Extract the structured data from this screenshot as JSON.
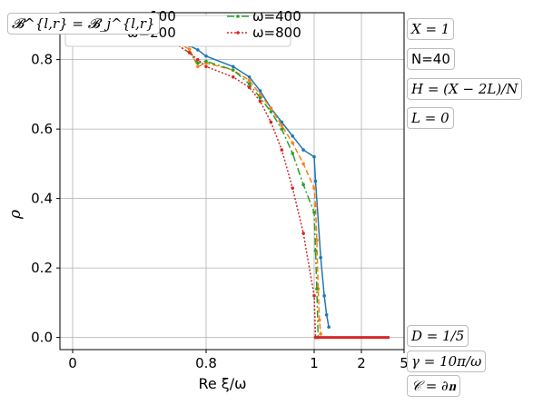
{
  "chart_data": {
    "type": "line",
    "title": "",
    "xlabel": "Re ξ/ω",
    "ylabel": "ρ",
    "x_ticks": [
      {
        "v": 0,
        "label": "0"
      },
      {
        "v": 0.8,
        "label": "0.8"
      },
      {
        "v": 1,
        "label": "1"
      },
      {
        "v": 2,
        "label": "2"
      },
      {
        "v": 5,
        "label": "5"
      }
    ],
    "y_ticks": [
      0.0,
      0.2,
      0.4,
      0.6,
      0.8
    ],
    "y_tick_labels": [
      "0.0",
      "0.2",
      "0.4",
      "0.6",
      "0.8"
    ],
    "ylim": [
      -0.035,
      0.935
    ],
    "grid": true,
    "legend_placement": "top-left",
    "series": [
      {
        "name": "ω=100",
        "color": "#1f77b4",
        "style": "solid",
        "x": [
          0.0,
          0.1,
          0.2,
          0.3,
          0.4,
          0.5,
          0.6,
          0.7,
          0.75,
          0.8,
          0.85,
          0.88,
          0.9,
          0.92,
          0.94,
          0.96,
          0.98,
          1.0,
          1.02,
          1.1,
          1.16,
          1.2,
          1.24
        ],
        "y": [
          0.89,
          0.89,
          0.888,
          0.886,
          0.882,
          0.875,
          0.862,
          0.84,
          0.828,
          0.81,
          0.78,
          0.75,
          0.71,
          0.66,
          0.62,
          0.58,
          0.54,
          0.52,
          0.45,
          0.23,
          0.12,
          0.065,
          0.03
        ]
      },
      {
        "name": "ω=200",
        "color": "#ff7f0e",
        "style": "dashed",
        "x": [
          0.0,
          0.1,
          0.2,
          0.3,
          0.4,
          0.5,
          0.6,
          0.7,
          0.75,
          0.8,
          0.85,
          0.88,
          0.9,
          0.92,
          0.94,
          0.96,
          0.98,
          1.0,
          1.02,
          1.04,
          1.06,
          1.08,
          1.1
        ],
        "y": [
          0.892,
          0.892,
          0.89,
          0.888,
          0.883,
          0.87,
          0.855,
          0.83,
          0.78,
          0.79,
          0.77,
          0.74,
          0.7,
          0.66,
          0.61,
          0.56,
          0.5,
          0.43,
          0.38,
          0.28,
          0.14,
          0.05,
          0.01
        ]
      },
      {
        "name": "ω=400",
        "color": "#2ca02c",
        "style": "dashdot",
        "x": [
          0.0,
          0.1,
          0.2,
          0.3,
          0.4,
          0.5,
          0.6,
          0.7,
          0.75,
          0.8,
          0.85,
          0.88,
          0.9,
          0.92,
          0.94,
          0.96,
          0.98,
          1.0,
          1.02,
          1.04,
          1.06
        ],
        "y": [
          0.885,
          0.883,
          0.88,
          0.878,
          0.874,
          0.866,
          0.85,
          0.82,
          0.79,
          0.795,
          0.77,
          0.73,
          0.69,
          0.65,
          0.6,
          0.53,
          0.44,
          0.36,
          0.25,
          0.14,
          0.0
        ]
      },
      {
        "name": "ω=800",
        "color": "#d62728",
        "style": "dotted",
        "x": [
          0.0,
          0.1,
          0.2,
          0.3,
          0.4,
          0.5,
          0.6,
          0.7,
          0.75,
          0.8,
          0.85,
          0.88,
          0.9,
          0.92,
          0.94,
          0.96,
          0.98,
          1.0,
          1.02
        ],
        "y": [
          0.897,
          0.895,
          0.89,
          0.885,
          0.878,
          0.865,
          0.85,
          0.82,
          0.8,
          0.78,
          0.75,
          0.72,
          0.68,
          0.62,
          0.54,
          0.43,
          0.3,
          0.12,
          0.0
        ]
      }
    ],
    "zero_tail": {
      "color": "#d62728",
      "x_start": 1.0,
      "x_end": 5.0,
      "y": 0.0
    }
  },
  "legend": {
    "title": "𝓑^{l,r} = 𝓑_j^{l,r}",
    "entries": [
      "ω=100",
      "ω=200",
      "ω=400",
      "ω=800"
    ]
  },
  "annotations": {
    "x_eq": "X = 1",
    "n_eq": "N=40",
    "h_eq": "H = (X − 2L)/N",
    "l_eq": "L = 0",
    "d_eq": "D = 1/5",
    "gamma_eq": "γ = 10π/ω",
    "c_eq": "𝒞 = ∂𝐧"
  }
}
